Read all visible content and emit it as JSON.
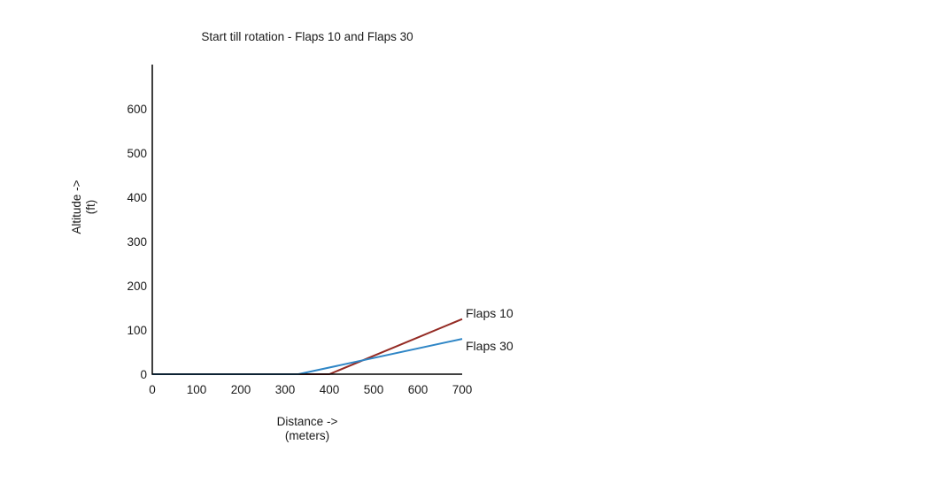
{
  "page": {
    "background_color": "#ffffff",
    "text_color": "#1a1a1a"
  },
  "chart_data": {
    "type": "line",
    "title": "Start till rotation - Flaps 10 and Flaps 30",
    "xlabel": "Distance ->",
    "xlabel_unit": "(meters)",
    "ylabel": "Altitude ->",
    "ylabel_unit": "(ft)",
    "xlim": [
      0,
      700
    ],
    "ylim": [
      0,
      702
    ],
    "x_ticks": [
      0,
      100,
      200,
      300,
      400,
      500,
      600,
      700
    ],
    "y_ticks": [
      0,
      100,
      200,
      300,
      400,
      500,
      600
    ],
    "grid": false,
    "tick_marks": false,
    "axis_color": "#000000",
    "legend_position": "end-of-line-labels",
    "series": [
      {
        "name": "Flaps 10",
        "color": "#942b24",
        "points": [
          [
            0,
            0
          ],
          [
            400,
            0
          ],
          [
            700,
            125
          ]
        ]
      },
      {
        "name": "Flaps 30",
        "color": "#2f86c6",
        "points": [
          [
            0,
            0
          ],
          [
            330,
            0
          ],
          [
            700,
            80
          ]
        ]
      }
    ]
  }
}
